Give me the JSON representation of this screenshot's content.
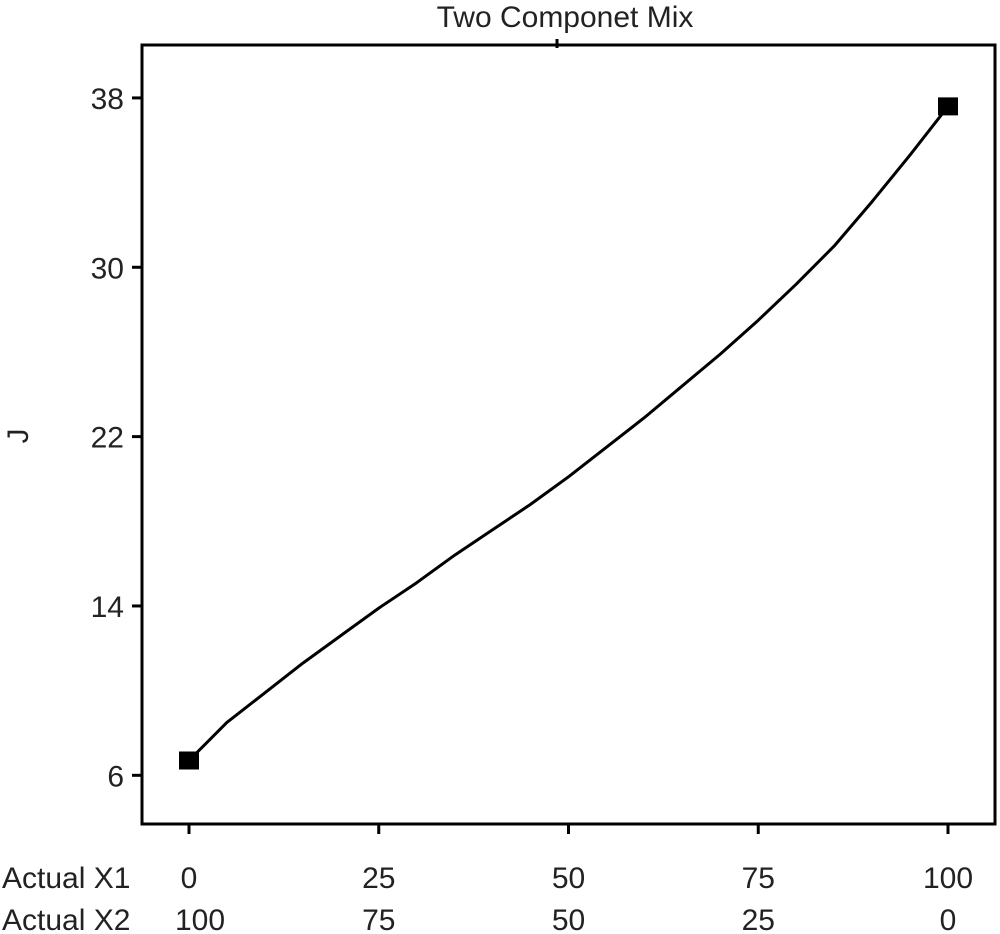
{
  "chart_data": {
    "type": "line",
    "title": "Two Componet Mix",
    "ylabel": "J",
    "xaxis_rows": [
      {
        "label": "Actual X1",
        "ticks": [
          "0",
          "25",
          "50",
          "75",
          "100"
        ]
      },
      {
        "label": "Actual X2",
        "ticks": [
          "100",
          "75",
          "50",
          "25",
          "0"
        ]
      }
    ],
    "xlim": [
      0,
      100
    ],
    "ylim": [
      3.7,
      40.5
    ],
    "yticks": [
      "6",
      "14",
      "22",
      "30",
      "38"
    ],
    "grid": false,
    "legend": "none",
    "series": [
      {
        "x": [
          0,
          5,
          10,
          15,
          20,
          25,
          30,
          35,
          40,
          45,
          50,
          55,
          60,
          65,
          70,
          75,
          80,
          85,
          90,
          95,
          100
        ],
        "y": [
          6.7,
          8.5,
          9.9,
          11.3,
          12.6,
          13.9,
          15.1,
          16.4,
          17.6,
          18.8,
          20.1,
          21.5,
          22.9,
          24.4,
          25.9,
          27.5,
          29.2,
          31.0,
          33.1,
          35.3,
          37.6
        ],
        "color": "#000000"
      }
    ],
    "points": [
      {
        "x": 0,
        "y": 6.7
      },
      {
        "x": 100,
        "y": 37.6
      }
    ]
  }
}
